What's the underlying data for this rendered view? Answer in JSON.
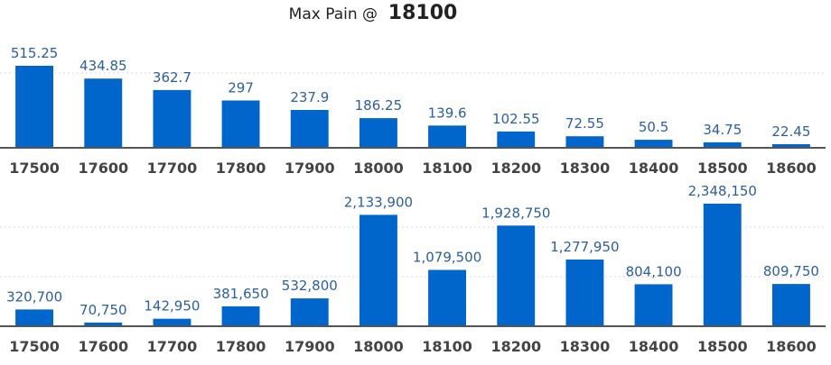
{
  "header": {
    "prefix": "Max Pain @",
    "strike": "18100"
  },
  "colors": {
    "bar": "#0066cc",
    "label": "#2c5f9c",
    "axis": "#555555"
  },
  "chart_data": [
    {
      "type": "bar",
      "categories": [
        "17500",
        "17600",
        "17700",
        "17800",
        "17900",
        "18000",
        "18100",
        "18200",
        "18300",
        "18400",
        "18500",
        "18600"
      ],
      "values": [
        515.25,
        434.85,
        362.7,
        297,
        237.9,
        186.25,
        139.6,
        102.55,
        72.55,
        50.5,
        34.75,
        22.45
      ],
      "labels": [
        "515.25",
        "434.85",
        "362.7",
        "297",
        "237.9",
        "186.25",
        "139.6",
        "102.55",
        "72.55",
        "50.5",
        "34.75",
        "22.45"
      ],
      "ylim": [
        0,
        540
      ],
      "grid": true
    },
    {
      "type": "bar",
      "categories": [
        "17500",
        "17600",
        "17700",
        "17800",
        "17900",
        "18000",
        "18100",
        "18200",
        "18300",
        "18400",
        "18500",
        "18600"
      ],
      "values": [
        320700,
        70750,
        142950,
        381650,
        532800,
        2133900,
        1079500,
        1928750,
        1277950,
        804100,
        2348150,
        809750
      ],
      "labels": [
        "320,700",
        "70,750",
        "142,950",
        "381,650",
        "532,800",
        "2,133,900",
        "1,079,500",
        "1,928,750",
        "1,277,950",
        "804,100",
        "2,348,150",
        "809,750"
      ],
      "ylim": [
        0,
        2450000
      ],
      "grid": true
    }
  ]
}
